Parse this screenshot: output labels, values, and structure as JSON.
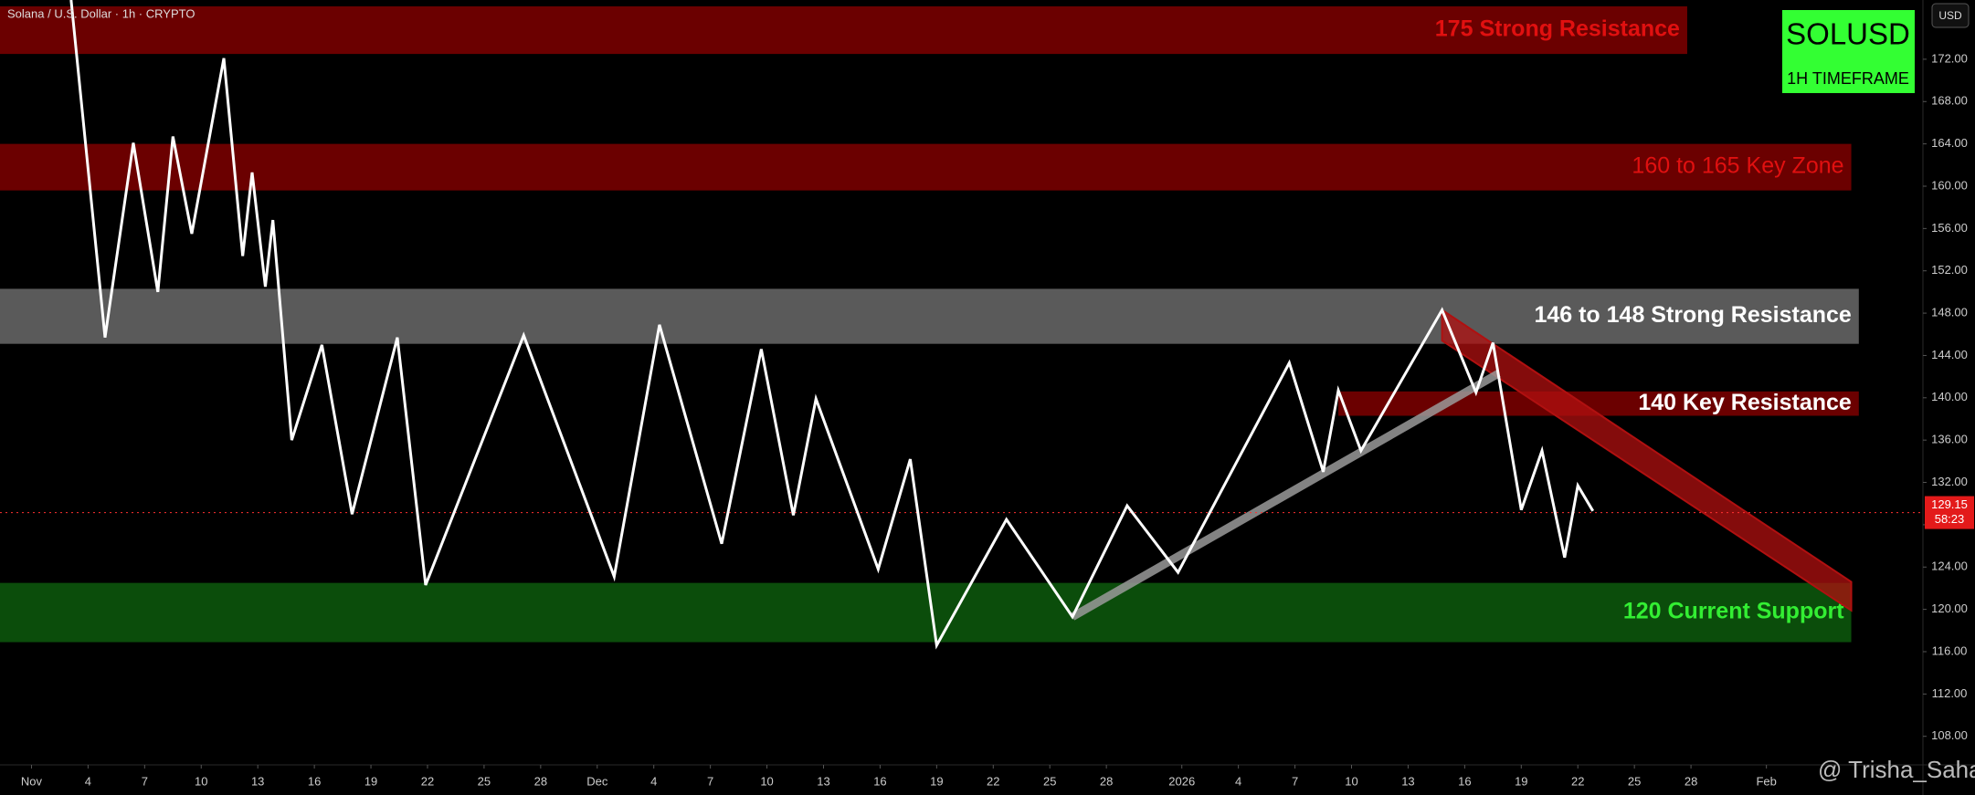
{
  "chart_data": {
    "type": "line",
    "title": "Solana / U.S. Dollar · 1h · CRYPTO",
    "symbol": "SOLUSD",
    "timeframe": "1H TIMEFRAME",
    "currency": "USD",
    "watermark": "@ Trisha_Saha",
    "last_price": 129.15,
    "last_price_label": "129.15",
    "countdown": "58:23",
    "color": "#ffffff",
    "x": [
      2.1,
      3.9,
      5.4,
      6.7,
      7.5,
      8.5,
      10.2,
      11.2,
      11.7,
      12.4,
      12.8,
      13.8,
      15.4,
      17.0,
      19.4,
      20.9,
      26.1,
      30.9,
      33.3,
      36.6,
      38.7,
      40.4,
      41.6,
      44.9,
      46.6,
      48.0,
      51.7,
      55.2,
      58.1,
      60.8,
      66.7,
      68.5,
      69.3,
      70.5,
      74.8,
      76.6,
      77.5,
      79.0,
      80.1,
      81.3,
      82.0,
      82.8
    ],
    "values": [
      177.6,
      145.7,
      164.1,
      150.0,
      164.7,
      155.5,
      172.1,
      153.4,
      161.3,
      150.5,
      156.8,
      136.0,
      145.0,
      129.0,
      145.7,
      122.3,
      145.9,
      123.1,
      146.9,
      126.2,
      144.6,
      128.9,
      139.9,
      123.8,
      134.2,
      116.6,
      128.5,
      119.3,
      129.8,
      123.5,
      143.3,
      133.0,
      140.7,
      135.0,
      148.3,
      140.5,
      145.2,
      129.4,
      135.0,
      124.9,
      131.7,
      129.3
    ],
    "xlim": [
      -1.67,
      100.3
    ],
    "ylim": [
      105.3,
      177.6
    ],
    "xticks": [
      {
        "value": 0,
        "label": "Nov"
      },
      {
        "value": 3,
        "label": "4"
      },
      {
        "value": 6,
        "label": "7"
      },
      {
        "value": 9,
        "label": "10"
      },
      {
        "value": 12,
        "label": "13"
      },
      {
        "value": 15,
        "label": "16"
      },
      {
        "value": 18,
        "label": "19"
      },
      {
        "value": 21,
        "label": "22"
      },
      {
        "value": 24,
        "label": "25"
      },
      {
        "value": 27,
        "label": "28"
      },
      {
        "value": 30,
        "label": "Dec"
      },
      {
        "value": 33,
        "label": "4"
      },
      {
        "value": 36,
        "label": "7"
      },
      {
        "value": 39,
        "label": "10"
      },
      {
        "value": 42,
        "label": "13"
      },
      {
        "value": 45,
        "label": "16"
      },
      {
        "value": 48,
        "label": "19"
      },
      {
        "value": 51,
        "label": "22"
      },
      {
        "value": 54,
        "label": "25"
      },
      {
        "value": 57,
        "label": "28"
      },
      {
        "value": 61,
        "label": "2026"
      },
      {
        "value": 64,
        "label": "4"
      },
      {
        "value": 67,
        "label": "7"
      },
      {
        "value": 70,
        "label": "10"
      },
      {
        "value": 73,
        "label": "13"
      },
      {
        "value": 76,
        "label": "16"
      },
      {
        "value": 79,
        "label": "19"
      },
      {
        "value": 82,
        "label": "22"
      },
      {
        "value": 85,
        "label": "25"
      },
      {
        "value": 88,
        "label": "28"
      },
      {
        "value": 92,
        "label": "Feb"
      }
    ],
    "yticks": [
      {
        "value": 108,
        "label": "108.00"
      },
      {
        "value": 112,
        "label": "112.00"
      },
      {
        "value": 116,
        "label": "116.00"
      },
      {
        "value": 120,
        "label": "120.00"
      },
      {
        "value": 124,
        "label": "124.00"
      },
      {
        "value": 128,
        "label": "128.00"
      },
      {
        "value": 132,
        "label": "132.00"
      },
      {
        "value": 136,
        "label": "136.00"
      },
      {
        "value": 140,
        "label": "140.00"
      },
      {
        "value": 144,
        "label": "144.00"
      },
      {
        "value": 148,
        "label": "148.00"
      },
      {
        "value": 152,
        "label": "152.00"
      },
      {
        "value": 156,
        "label": "156.00"
      },
      {
        "value": 160,
        "label": "160.00"
      },
      {
        "value": 164,
        "label": "164.00"
      },
      {
        "value": 168,
        "label": "168.00"
      },
      {
        "value": 172,
        "label": "172.00"
      }
    ],
    "zones": [
      {
        "label": "175 Strong Resistance",
        "low": 172.5,
        "high": 177.0,
        "x_end": 87.8,
        "color": "#6b0000",
        "text_color": "#e01010",
        "bold": true
      },
      {
        "label": "160 to 165 Key Zone",
        "low": 159.6,
        "high": 164.0,
        "x_end": 96.5,
        "color": "#6b0000",
        "text_color": "#e01010",
        "bold": false
      },
      {
        "label": "146 to 148 Strong Resistance",
        "low": 145.1,
        "high": 150.3,
        "x_end": 96.9,
        "color": "#5a5a5a",
        "text_color": "#ffffff",
        "bold": true
      },
      {
        "label": "140 Key Resistance",
        "low": 138.3,
        "high": 140.6,
        "x_start": 69.3,
        "x_end": 96.9,
        "color": "#6b0000",
        "text_color": "#ffffff",
        "bold": true
      },
      {
        "label": "120 Current Support",
        "low": 116.9,
        "high": 122.5,
        "x_end": 96.5,
        "color": "#0b4d0b",
        "text_color": "#33ee33",
        "bold": true
      }
    ],
    "channel": {
      "color": "#b01010",
      "x": [
        74.8,
        96.5
      ],
      "upper": [
        148.3,
        122.6
      ],
      "lower": [
        145.4,
        119.9
      ]
    },
    "trendline": {
      "color": "#9a9a9a",
      "x": [
        55.2,
        77.8
      ],
      "values": [
        119.3,
        142.3
      ]
    }
  }
}
